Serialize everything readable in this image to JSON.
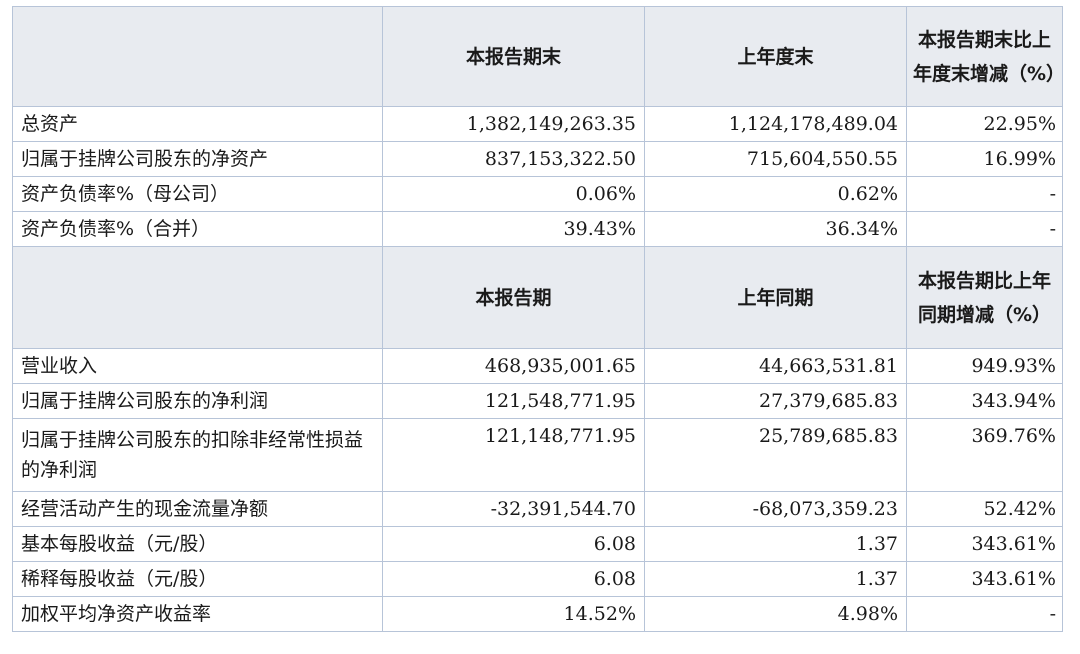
{
  "section1": {
    "headers": [
      "",
      "本报告期末",
      "上年度末",
      "本报告期末比上年度末增减（%）"
    ],
    "rows": [
      {
        "label": "总资产",
        "current": "1,382,149,263.35",
        "prior": "1,124,178,489.04",
        "change": "22.95%"
      },
      {
        "label": "归属于挂牌公司股东的净资产",
        "current": "837,153,322.50",
        "prior": "715,604,550.55",
        "change": "16.99%"
      },
      {
        "label": "资产负债率%（母公司）",
        "current": "0.06%",
        "prior": "0.62%",
        "change": "-"
      },
      {
        "label": "资产负债率%（合并）",
        "current": "39.43%",
        "prior": "36.34%",
        "change": "-"
      }
    ]
  },
  "section2": {
    "headers": [
      "",
      "本报告期",
      "上年同期",
      "本报告期比上年同期增减（%）"
    ],
    "rows": [
      {
        "label": "营业收入",
        "current": "468,935,001.65",
        "prior": "44,663,531.81",
        "change": "949.93%"
      },
      {
        "label": "归属于挂牌公司股东的净利润",
        "current": "121,548,771.95",
        "prior": "27,379,685.83",
        "change": "343.94%"
      },
      {
        "label": "归属于挂牌公司股东的扣除非经常性损益的净利润",
        "current": "121,148,771.95",
        "prior": "25,789,685.83",
        "change": "369.76%"
      },
      {
        "label": "经营活动产生的现金流量净额",
        "current": "-32,391,544.70",
        "prior": "-68,073,359.23",
        "change": "52.42%"
      },
      {
        "label": "基本每股收益（元/股）",
        "current": "6.08",
        "prior": "1.37",
        "change": "343.61%"
      },
      {
        "label": "稀释每股收益（元/股）",
        "current": "6.08",
        "prior": "1.37",
        "change": "343.61%"
      },
      {
        "label": "加权平均净资产收益率",
        "current": "14.52%",
        "prior": "4.98%",
        "change": "-"
      }
    ]
  }
}
